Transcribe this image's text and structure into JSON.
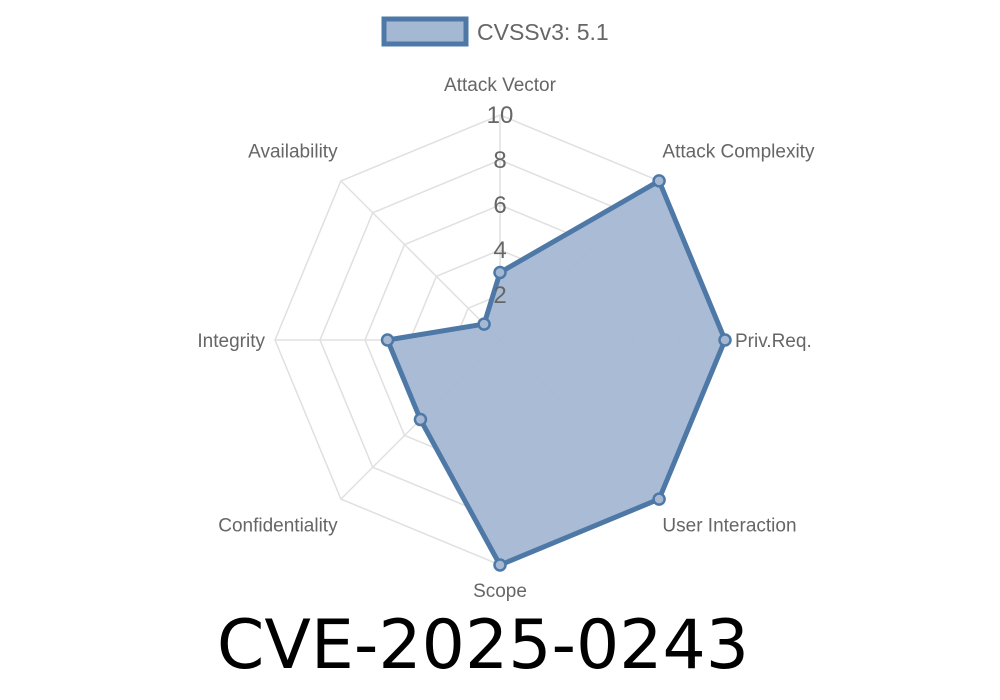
{
  "chart_data": {
    "type": "radar",
    "title": "",
    "axes": [
      "Attack Vector",
      "Attack Complexity",
      "Priv.Req.",
      "User Interaction",
      "Scope",
      "Confidentiality",
      "Integrity",
      "Availability"
    ],
    "r_range": [
      0,
      10
    ],
    "ticks": [
      "2",
      "4",
      "6",
      "8",
      "10"
    ],
    "tick_values": [
      2,
      4,
      6,
      8,
      10
    ],
    "grid": true,
    "legend_position": "top",
    "series": [
      {
        "name": "CVSSv3: 5.1",
        "values": [
          3,
          10,
          10,
          10,
          10,
          5,
          5,
          1
        ],
        "color": "#4e79a7",
        "fill": "#a5b8d3"
      }
    ]
  },
  "footer": {
    "cve_id": "CVE-2025-0243"
  }
}
